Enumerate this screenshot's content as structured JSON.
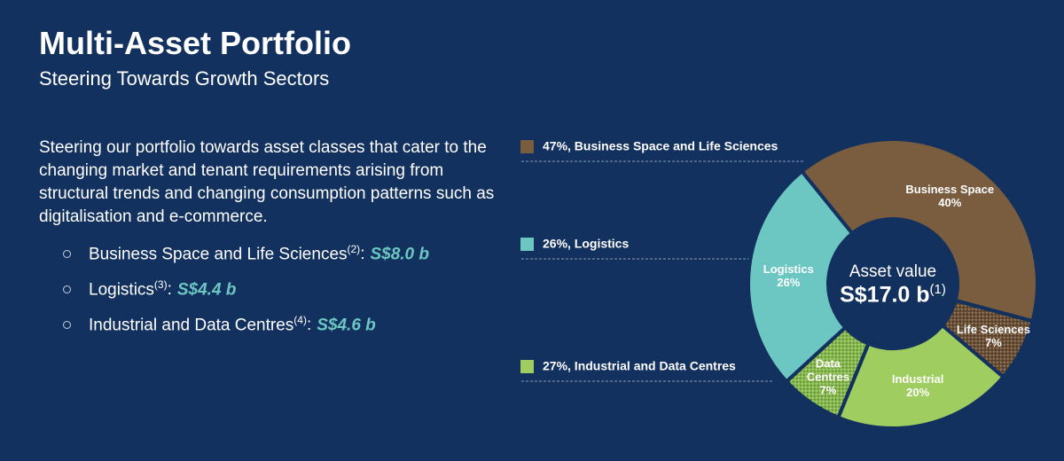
{
  "header": {
    "title": "Multi-Asset Portfolio",
    "subtitle": "Steering Towards Growth Sectors"
  },
  "body": {
    "text": "Steering our portfolio towards asset classes that cater to the changing market and tenant requirements arising from structural trends and changing consumption patterns such as digitalisation and e-commerce.",
    "bullets": [
      {
        "text": "Business Space and Life Sciences",
        "note": "(2)",
        "sep": ":",
        "amount": "S$8.0 b"
      },
      {
        "text": "Logistics",
        "note": "(3)",
        "sep": ":",
        "amount": "S$4.4 b"
      },
      {
        "text": "Industrial and Data Centres",
        "note": "(4)",
        "sep": ":",
        "amount": "S$4.6 b"
      }
    ]
  },
  "chart_data": {
    "type": "donut",
    "categories": [
      "Business Space",
      "Life Sciences",
      "Industrial",
      "Data Centres",
      "Logistics"
    ],
    "values": [
      40,
      7,
      20,
      7,
      26
    ],
    "value_labels": [
      "40%",
      "7%",
      "20%",
      "7%",
      "26%"
    ],
    "colors": [
      "#7a5c3f",
      "#6a4e33",
      "#9fcd5f",
      "#86b94b",
      "#6cc6c1"
    ],
    "hatched": [
      false,
      true,
      false,
      true,
      false
    ],
    "center_label": "Asset value",
    "center_value": "S$17.0 b",
    "center_note": "(1)",
    "legend": [
      {
        "label": "47%, Business Space and Life Sciences",
        "color": "#7a5c3f"
      },
      {
        "label": "26%, Logistics",
        "color": "#6cc6c1"
      },
      {
        "label": "27%, Industrial and Data Centres",
        "color": "#9fcd5f"
      }
    ]
  }
}
